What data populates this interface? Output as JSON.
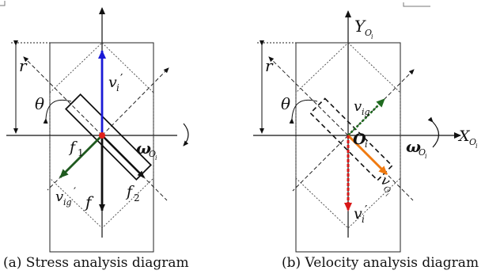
{
  "diagrams": [
    {
      "caption": "(a) Stress analysis diagram",
      "labels": {
        "r": "r",
        "theta": "θ",
        "vi_prime": "v",
        "vi_prime_sub": "i",
        "vi_prime_mark": "′",
        "vig_prime": "v",
        "vig_prime_sub": "ig",
        "vig_prime_mark": "′",
        "f1": "f",
        "f1_sub": "1",
        "f2": "f",
        "f2_sub": "2",
        "f": "f",
        "omega": "ω",
        "omega_sub": "O",
        "omega_subsub": "i"
      }
    },
    {
      "caption": "(b) Velocity analysis diagram",
      "labels": {
        "Y": "Y",
        "Y_sub": "O",
        "Y_subsub": "i",
        "X": "X",
        "X_sub": "O",
        "X_subsub": "i",
        "r": "r",
        "theta": "θ",
        "vig": "v",
        "vig_sub": "ig",
        "Oi": "O",
        "Oi_sub": "i",
        "vOi": "v",
        "vOi_sub": "O",
        "vOi_subsub": "i",
        "vi_prime": "v",
        "vi_prime_sub": "i",
        "vi_prime_mark": "′",
        "omega": "ω",
        "omega_sub": "O",
        "omega_subsub": "i"
      }
    }
  ],
  "colors": {
    "blue_arrow": "#1a1ad6",
    "green_arrow": "#1f5a1f",
    "red_dot": "#e0201a",
    "orange_arrow": "#f07a10",
    "red_dashed_arrow": "#d81818",
    "dark_green_dashed": "#1f6b1f"
  }
}
